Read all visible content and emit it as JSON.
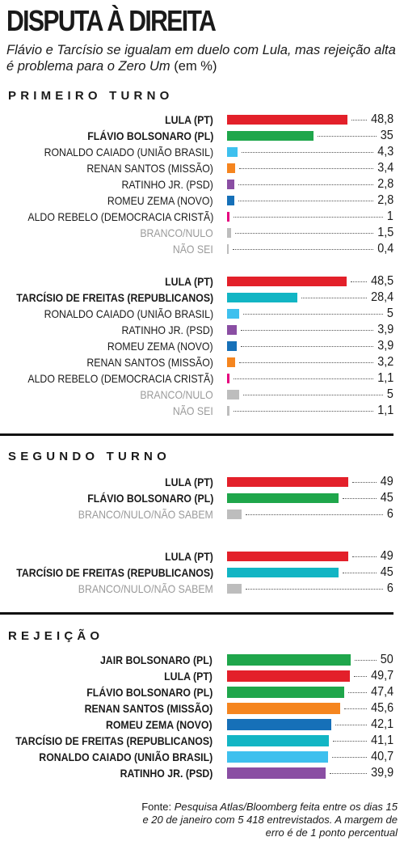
{
  "title": "DISPUTA À DIREITA",
  "subtitle": "Flávio e Tarcísio se igualam em duelo com Lula, mas rejeição alta é problema para o Zero Um",
  "unit_note": "(em %)",
  "source": {
    "prefix": "Fonte:",
    "text": "Pesquisa Atlas/Bloomberg feita entre os dias 15 e 20 de janeiro com 5 418 entrevistados. A margem de erro é de 1 ponto percentual"
  },
  "colors": {
    "lula": "#e3202a",
    "flavio": "#1fa64b",
    "tarcisio": "#12b5c4",
    "caiado": "#3ec0ee",
    "renan": "#f5851f",
    "ratinho": "#8a4ea3",
    "zema": "#1670b8",
    "aldo": "#e5007e",
    "null": "#bdbdbd",
    "jair": "#1fa64b"
  },
  "chart_data": [
    {
      "type": "bar",
      "section": "PRIMEIRO TURNO",
      "categories": [
        "LULA (PT)",
        "FLÁVIO BOLSONARO (PL)",
        "RONALDO CAIADO (UNIÃO BRASIL)",
        "RENAN SANTOS (MISSÃO)",
        "RATINHO JR. (PSD)",
        "ROMEU ZEMA (NOVO)",
        "ALDO REBELO (DEMOCRACIA CRISTÃ)",
        "BRANCO/NULO",
        "NÃO SEI"
      ],
      "values": [
        48.8,
        35,
        4.3,
        3.4,
        2.8,
        2.8,
        1,
        1.5,
        0.4
      ],
      "value_labels": [
        "48,8",
        "35",
        "4,3",
        "3,4",
        "2,8",
        "2,8",
        "1",
        "1,5",
        "0,4"
      ],
      "colors": [
        "lula",
        "flavio",
        "caiado",
        "renan",
        "ratinho",
        "zema",
        "aldo",
        "null",
        "null"
      ],
      "styles": [
        "bold",
        "bold",
        "normal",
        "normal",
        "normal",
        "normal",
        "normal",
        "muted",
        "muted"
      ],
      "xlim": [
        0,
        50
      ]
    },
    {
      "type": "bar",
      "categories": [
        "LULA (PT)",
        "TARCÍSIO DE FREITAS (REPUBLICANOS)",
        "RONALDO CAIADO (UNIÃO BRASIL)",
        "RATINHO JR. (PSD)",
        "ROMEU ZEMA (NOVO)",
        "RENAN SANTOS (MISSÃO)",
        "ALDO REBELO (DEMOCRACIA CRISTÃ)",
        "BRANCO/NULO",
        "NÃO SEI"
      ],
      "values": [
        48.5,
        28.4,
        5,
        3.9,
        3.9,
        3.2,
        1.1,
        5,
        1.1
      ],
      "value_labels": [
        "48,5",
        "28,4",
        "5",
        "3,9",
        "3,9",
        "3,2",
        "1,1",
        "5",
        "1,1"
      ],
      "colors": [
        "lula",
        "tarcisio",
        "caiado",
        "ratinho",
        "zema",
        "renan",
        "aldo",
        "null",
        "null"
      ],
      "styles": [
        "bold",
        "bold",
        "normal",
        "normal",
        "normal",
        "normal",
        "normal",
        "muted",
        "muted"
      ],
      "xlim": [
        0,
        50
      ]
    },
    {
      "type": "bar",
      "section": "SEGUNDO TURNO",
      "categories": [
        "LULA (PT)",
        "FLÁVIO BOLSONARO (PL)",
        "BRANCO/NULO/NÃO SABEM"
      ],
      "values": [
        49,
        45,
        6
      ],
      "value_labels": [
        "49",
        "45",
        "6"
      ],
      "colors": [
        "lula",
        "flavio",
        "null"
      ],
      "styles": [
        "bold",
        "bold",
        "muted"
      ],
      "xlim": [
        0,
        50
      ]
    },
    {
      "type": "bar",
      "categories": [
        "LULA (PT)",
        "TARCÍSIO DE FREITAS (REPUBLICANOS)",
        "BRANCO/NULO/NÃO SABEM"
      ],
      "values": [
        49,
        45,
        6
      ],
      "value_labels": [
        "49",
        "45",
        "6"
      ],
      "colors": [
        "lula",
        "tarcisio",
        "null"
      ],
      "styles": [
        "bold",
        "bold",
        "muted"
      ],
      "xlim": [
        0,
        50
      ]
    },
    {
      "type": "bar",
      "section": "REJEIÇÃO",
      "categories": [
        "JAIR BOLSONARO (PL)",
        "LULA (PT)",
        "FLÁVIO BOLSONARO (PL)",
        "RENAN SANTOS (MISSÃO)",
        "ROMEU ZEMA (NOVO)",
        "TARCÍSIO DE FREITAS (REPUBLICANOS)",
        "RONALDO CAIADO (UNIÃO BRASIL)",
        "RATINHO JR. (PSD)"
      ],
      "values": [
        50,
        49.7,
        47.4,
        45.6,
        42.1,
        41.1,
        40.7,
        39.9
      ],
      "value_labels": [
        "50",
        "49,7",
        "47,4",
        "45,6",
        "42,1",
        "41,1",
        "40,7",
        "39,9"
      ],
      "colors": [
        "jair",
        "lula",
        "flavio",
        "renan",
        "zema",
        "tarcisio",
        "caiado",
        "ratinho"
      ],
      "styles": [
        "bold",
        "bold",
        "bold",
        "bold",
        "bold",
        "bold",
        "bold",
        "bold"
      ],
      "xlim": [
        0,
        50
      ]
    }
  ]
}
